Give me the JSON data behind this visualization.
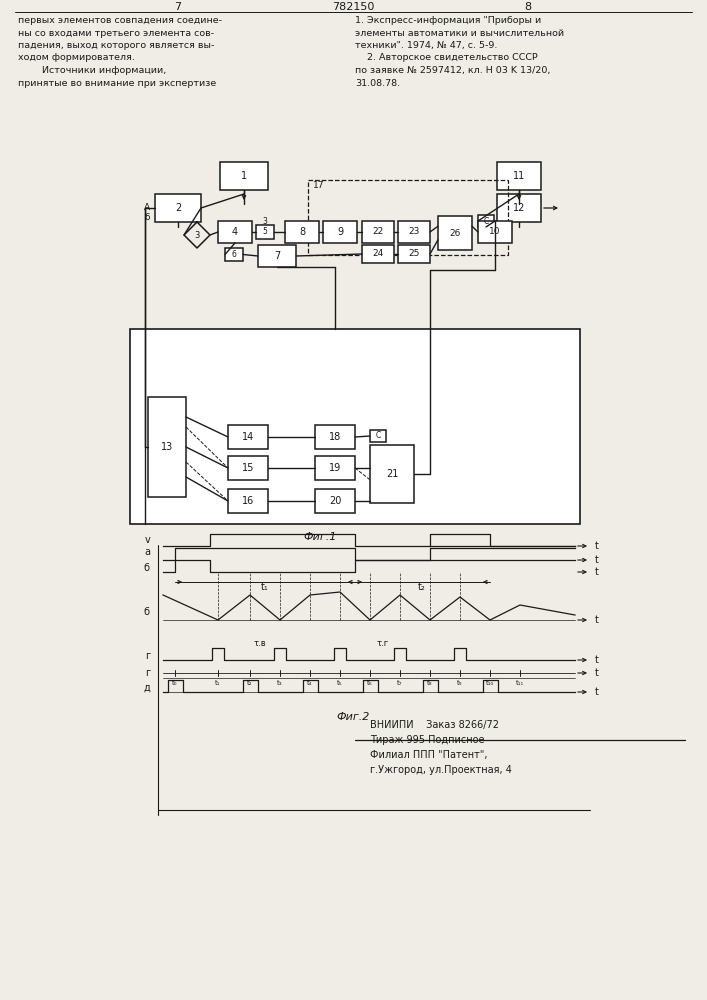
{
  "page_number_left": "7",
  "page_number_center": "782150",
  "page_number_right": "8",
  "left_text": "первых элементов совпадения соедине-\nны со входами третьего элемента сов-\nпадения, выход которого является вы-\nходом формирователя.\n        Источники информации,\nпринятые во внимание при экспертизе",
  "right_text": "1. Экспресс-информация \"Приборы и\nэлементы автоматики и вычислительной\nтехники\". 1974, № 47, с. 5-9.\n    2. Авторское свидетельство СССР\nпо заявке № 2597412, кл. H 03 K 13/20,\n31.08.78.",
  "fig1_caption": "Фиг.1",
  "fig2_caption": "Фиг.2",
  "bottom_text1": "ВНИИПИ    Заказ 8266/72",
  "bottom_text2": "Тираж 995 Подписное",
  "bottom_text3": "Филиал ППП \"Патент\",",
  "bottom_text4": "г.Ужгород, ул.Проектная, 4",
  "bg_color": "#f0ede6",
  "line_color": "#1a1a1a",
  "text_color": "#1a1a1a"
}
